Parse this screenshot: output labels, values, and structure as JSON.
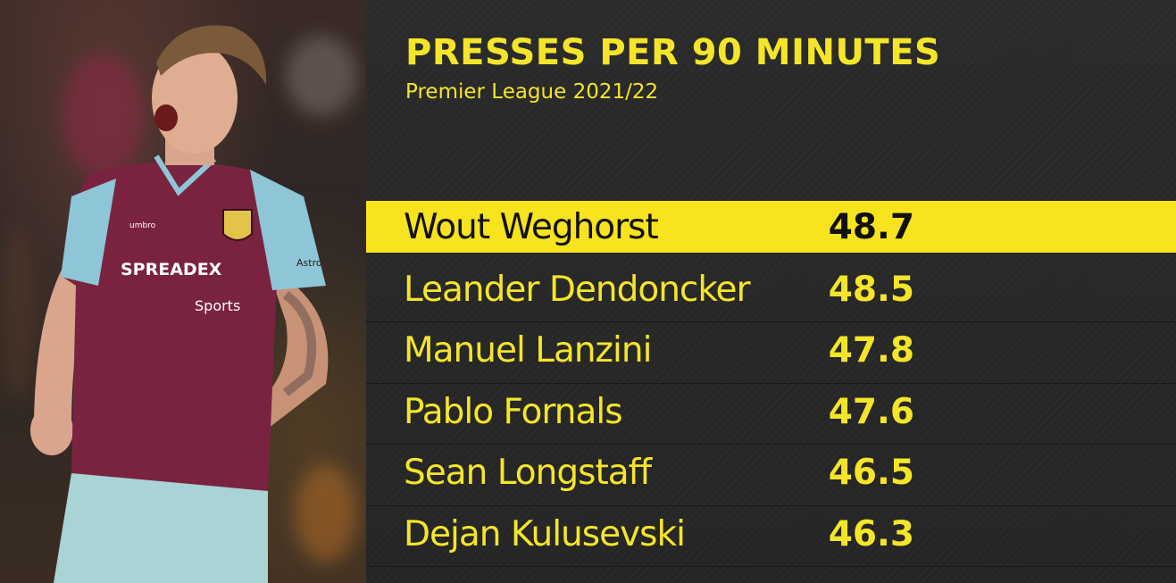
{
  "chart_data": {
    "type": "table",
    "title": "PRESSES PER 90 MINUTES",
    "subtitle": "Premier League 2021/22",
    "categories": [
      "Wout Weghorst",
      "Leander Dendoncker",
      "Manuel Lanzini",
      "Pablo Fornals",
      "Sean Longstaff",
      "Dejan Kulusevski"
    ],
    "values": [
      48.7,
      48.5,
      47.8,
      47.6,
      46.5,
      46.3
    ],
    "value_labels": [
      "48.7",
      "48.5",
      "47.8",
      "47.6",
      "46.5",
      "46.3"
    ],
    "highlighted_index": 0
  },
  "colors": {
    "accent": "#f5e52a",
    "panel_background": "#262626",
    "highlight_text": "#111111"
  },
  "photo": {
    "shirt_sponsor_line1": "SPREADEX",
    "shirt_sponsor_line2": "Sports",
    "kit_maker": "umbro",
    "sleeve_sponsor": "Astro"
  }
}
